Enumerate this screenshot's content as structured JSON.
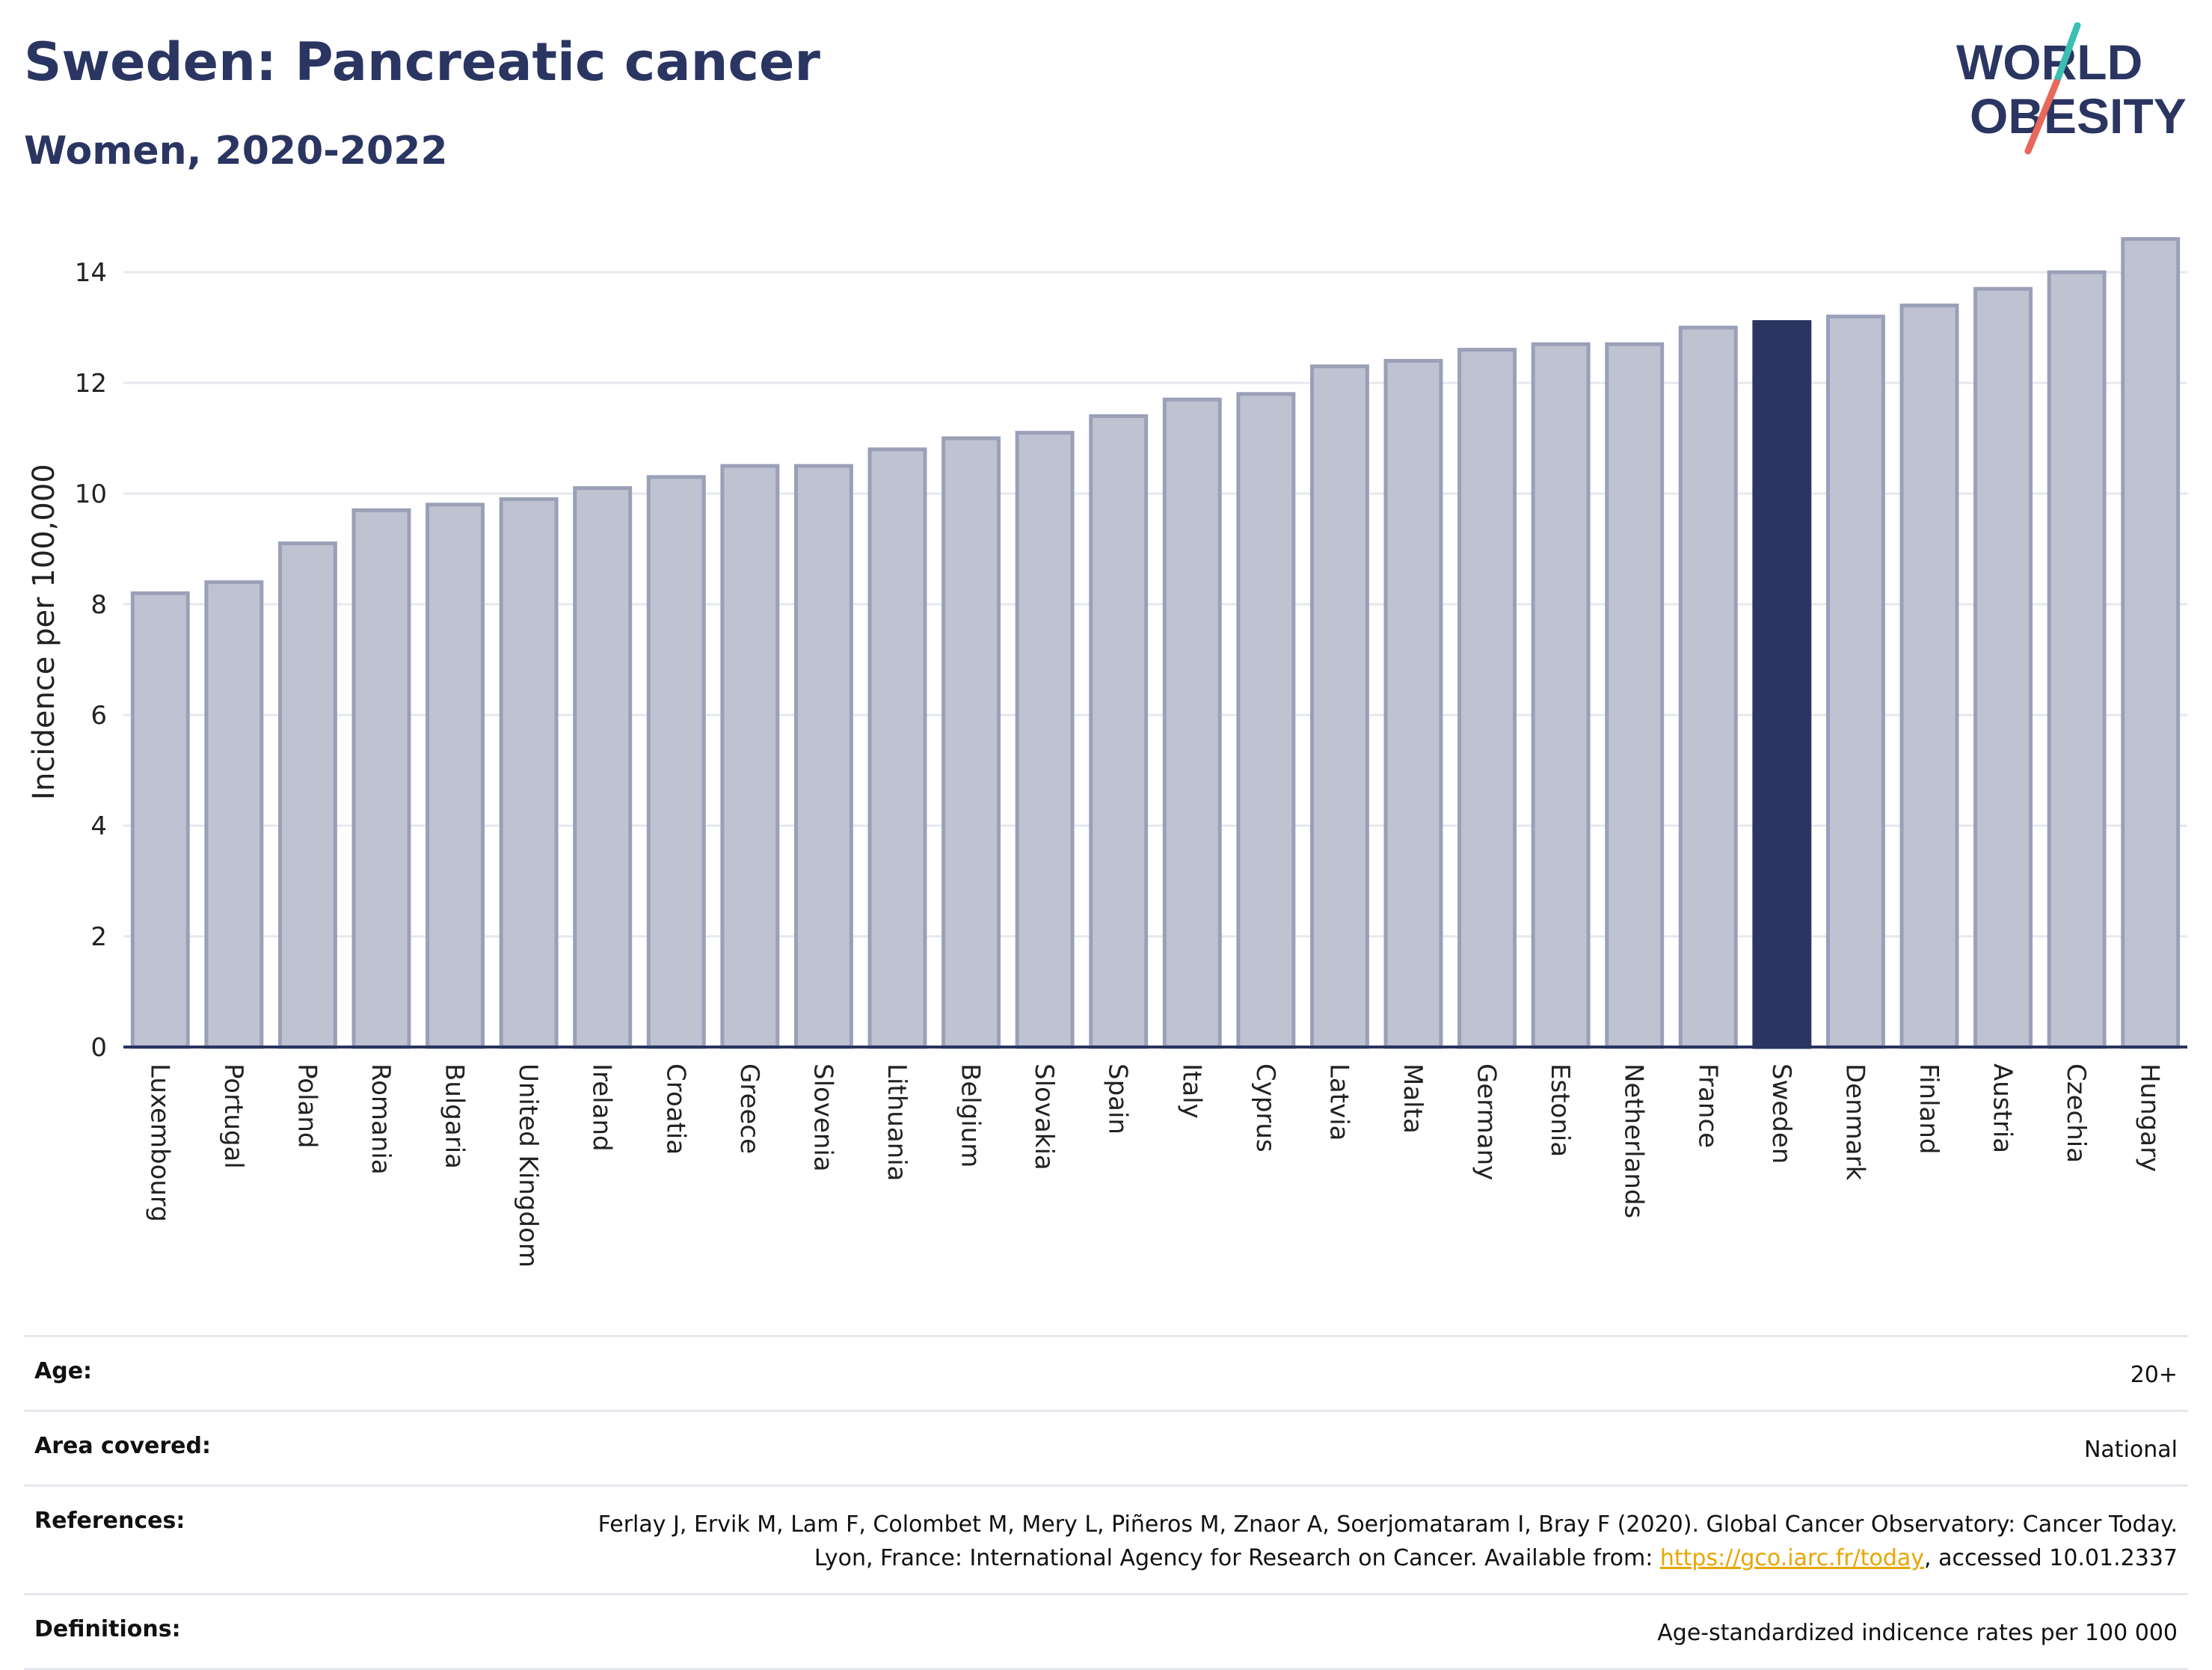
{
  "header": {
    "title": "Sweden: Pancreatic cancer",
    "subtitle": "Women, 2020-2022"
  },
  "logo": {
    "line1": "WORLD",
    "line2": "OBESITY",
    "colors": {
      "text": "#2a3561",
      "accent_teal": "#3bbfb2",
      "accent_coral": "#e8685a"
    }
  },
  "chart_data": {
    "type": "bar",
    "title": "Sweden: Pancreatic cancer",
    "subtitle": "Women, 2020-2022",
    "xlabel": "",
    "ylabel": "Incidence per 100,000",
    "ylim": [
      0,
      15
    ],
    "yticks": [
      0,
      2,
      4,
      6,
      8,
      10,
      12,
      14
    ],
    "grid": true,
    "highlight": "Sweden",
    "colors": {
      "default_bar": "#bfc2d0",
      "default_edge": "#9aa0b8",
      "highlight_bar": "#2a3561",
      "axis": "#2a3561",
      "grid": "#e6e8ef"
    },
    "categories": [
      "Luxembourg",
      "Portugal",
      "Poland",
      "Romania",
      "Bulgaria",
      "United Kingdom",
      "Ireland",
      "Croatia",
      "Greece",
      "Slovenia",
      "Lithuania",
      "Belgium",
      "Slovakia",
      "Spain",
      "Italy",
      "Cyprus",
      "Latvia",
      "Malta",
      "Germany",
      "Estonia",
      "Netherlands",
      "France",
      "Sweden",
      "Denmark",
      "Finland",
      "Austria",
      "Czechia",
      "Hungary"
    ],
    "values": [
      8.2,
      8.4,
      9.1,
      9.7,
      9.8,
      9.9,
      10.1,
      10.3,
      10.5,
      10.5,
      10.8,
      11.0,
      11.1,
      11.4,
      11.7,
      11.8,
      12.3,
      12.4,
      12.6,
      12.7,
      12.7,
      13.0,
      13.1,
      13.2,
      13.4,
      13.7,
      14.0,
      14.6
    ]
  },
  "meta": {
    "age": {
      "label": "Age:",
      "value": "20+"
    },
    "area": {
      "label": "Area covered:",
      "value": "National"
    },
    "references": {
      "label": "References:",
      "text_before": "Ferlay J, Ervik M, Lam F, Colombet M, Mery L, Piñeros M, Znaor A, Soerjomataram I, Bray F (2020). Global Cancer Observatory: Cancer Today. Lyon, France: International Agency for Research on Cancer. Available from: ",
      "link": "https://gco.iarc.fr/today",
      "text_after": ", accessed 10.01.2337"
    },
    "definitions": {
      "label": "Definitions:",
      "value": "Age-standardized indicence rates per 100 000"
    }
  }
}
